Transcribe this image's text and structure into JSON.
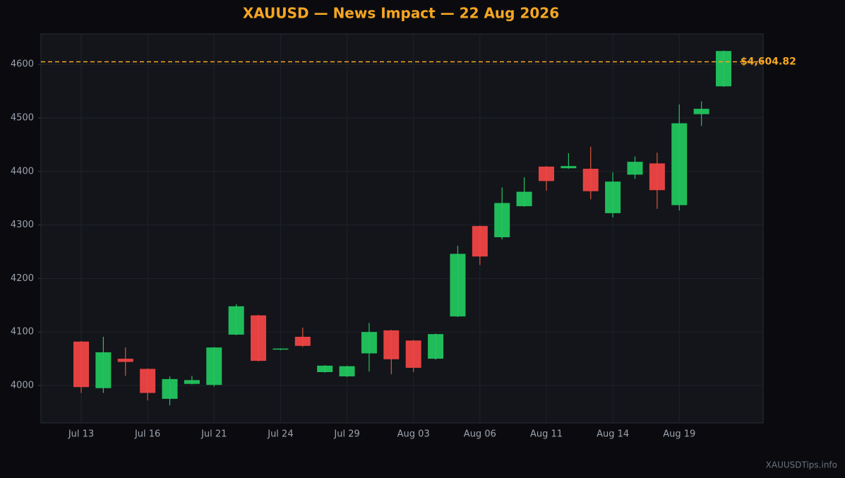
{
  "chart_data": {
    "type": "candlestick",
    "title": "XAUUSD — News Impact — 22 Aug 2026",
    "watermark": "XAUUSDTips.info",
    "categories": [
      "Jul 13",
      null,
      null,
      "Jul 16",
      null,
      null,
      "Jul 21",
      null,
      null,
      "Jul 24",
      null,
      null,
      "Jul 29",
      null,
      null,
      "Aug 03",
      null,
      null,
      "Aug 06",
      null,
      null,
      "Aug 11",
      null,
      null,
      "Aug 14",
      null,
      null,
      "Aug 19",
      null,
      null
    ],
    "open": [
      4082,
      3995,
      4050,
      4031,
      3975,
      4003,
      4001,
      4095,
      4131,
      4067,
      4091,
      4025,
      4017,
      4060,
      4103,
      4084,
      4050,
      4129,
      4298,
      4277,
      4335,
      4409,
      4406,
      4405,
      4322,
      4394,
      4415,
      4337,
      4507,
      4559
    ],
    "high": [
      4083,
      4091,
      4071,
      4032,
      4017,
      4018,
      4072,
      4152,
      4132,
      4069,
      4108,
      4038,
      4037,
      4117,
      4104,
      4085,
      4097,
      4261,
      4299,
      4370,
      4389,
      4410,
      4434,
      4446,
      4398,
      4428,
      4435,
      4525,
      4531,
      4626
    ],
    "low": [
      3986,
      3986,
      4018,
      3972,
      3963,
      4002,
      3998,
      4094,
      4045,
      4066,
      4072,
      4024,
      4016,
      4026,
      4021,
      4025,
      4048,
      4128,
      4225,
      4273,
      4334,
      4364,
      4405,
      4348,
      4314,
      4386,
      4330,
      4327,
      4485,
      4558
    ],
    "close": [
      3997,
      4062,
      4044,
      3986,
      4012,
      4010,
      4071,
      4148,
      4046,
      4069,
      4074,
      4037,
      4036,
      4100,
      4049,
      4033,
      4096,
      4246,
      4241,
      4341,
      4362,
      4382,
      4410,
      4363,
      4381,
      4418,
      4365,
      4490,
      4517,
      4625
    ],
    "up_color": "#22c55e",
    "down_color": "#ef4444",
    "up_wick_color": "#22c55e",
    "down_wick_color": "#e0553a",
    "ylim": [
      3930,
      4657
    ],
    "yticks": [
      4000,
      4100,
      4200,
      4300,
      4400,
      4500,
      4600
    ],
    "grid": true,
    "price_line": {
      "value": 4604.82,
      "label": "$4,604.82",
      "color": "#f5a623"
    }
  }
}
